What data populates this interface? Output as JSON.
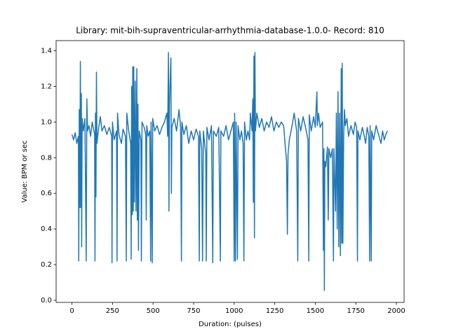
{
  "chart_data": {
    "type": "line",
    "title": "Library: mit-bih-supraventricular-arrhythmia-database-1.0.0- Record: 810",
    "x_label": "Duration: (pulses)",
    "y_label": "Value: BPM or sec",
    "color": "#1f77b4",
    "x": [
      0,
      10,
      20,
      30,
      40,
      42,
      45,
      48,
      52,
      55,
      58,
      60,
      63,
      70,
      80,
      88,
      92,
      96,
      105,
      115,
      125,
      140,
      142,
      145,
      148,
      151,
      154,
      165,
      175,
      185,
      200,
      215,
      230,
      245,
      247,
      250,
      260,
      275,
      278,
      281,
      290,
      305,
      315,
      330,
      335,
      338,
      350,
      362,
      365,
      368,
      372,
      375,
      378,
      381,
      385,
      390,
      395,
      400,
      403,
      407,
      410,
      415,
      425,
      428,
      432,
      445,
      455,
      458,
      461,
      470,
      480,
      485,
      488,
      495,
      498,
      510,
      525,
      540,
      555,
      570,
      585,
      590,
      595,
      598,
      601,
      610,
      613,
      616,
      630,
      645,
      660,
      670,
      675,
      678,
      690,
      705,
      720,
      735,
      750,
      765,
      780,
      785,
      788,
      800,
      805,
      810,
      825,
      828,
      832,
      845,
      860,
      868,
      872,
      890,
      905,
      915,
      918,
      935,
      950,
      965,
      980,
      995,
      1000,
      1003,
      1008,
      1012,
      1020,
      1024,
      1035,
      1045,
      1055,
      1060,
      1064,
      1075,
      1085,
      1095,
      1100,
      1110,
      1115,
      1118,
      1122,
      1125,
      1128,
      1131,
      1140,
      1155,
      1170,
      1185,
      1200,
      1215,
      1230,
      1245,
      1260,
      1275,
      1290,
      1305,
      1318,
      1323,
      1328,
      1332,
      1340,
      1355,
      1370,
      1385,
      1392,
      1396,
      1410,
      1425,
      1440,
      1455,
      1460,
      1463,
      1475,
      1490,
      1500,
      1510,
      1513,
      1520,
      1530,
      1545,
      1550,
      1553,
      1556,
      1559,
      1565,
      1575,
      1580,
      1584,
      1595,
      1605,
      1612,
      1615,
      1625,
      1630,
      1635,
      1640,
      1645,
      1650,
      1655,
      1660,
      1663,
      1666,
      1670,
      1675,
      1680,
      1685,
      1695,
      1705,
      1720,
      1735,
      1745,
      1755,
      1760,
      1763,
      1775,
      1790,
      1800,
      1810,
      1820,
      1830,
      1835,
      1838,
      1845,
      1848,
      1860,
      1875,
      1890,
      1905,
      1915,
      1925,
      1935,
      1945
    ],
    "values": [
      0.93,
      0.9,
      0.94,
      0.88,
      0.92,
      0.22,
      1.07,
      0.52,
      1.34,
      0.52,
      1.16,
      0.3,
      1.02,
      0.95,
      1.02,
      0.22,
      1.13,
      0.95,
      0.98,
      0.92,
      1.0,
      0.93,
      0.22,
      1.05,
      0.58,
      1.28,
      0.88,
      0.97,
      1.03,
      0.95,
      0.98,
      0.93,
      0.97,
      0.92,
      0.21,
      1.0,
      0.9,
      0.95,
      0.22,
      1.05,
      0.93,
      0.88,
      0.96,
      0.92,
      0.22,
      1.05,
      0.95,
      0.88,
      0.23,
      1.2,
      0.48,
      1.31,
      0.5,
      1.31,
      0.55,
      1.23,
      0.5,
      1.3,
      0.45,
      1.1,
      0.28,
      0.95,
      0.9,
      0.22,
      1.0,
      0.97,
      0.93,
      0.45,
      0.98,
      0.92,
      0.95,
      0.22,
      1.0,
      0.21,
      1.02,
      0.95,
      0.98,
      0.93,
      0.97,
      1.0,
      1.05,
      0.92,
      1.39,
      0.5,
      1.1,
      1.36,
      0.6,
      0.97,
      1.02,
      0.95,
      1.07,
      0.97,
      0.22,
      1.0,
      0.93,
      0.98,
      0.88,
      0.95,
      0.9,
      0.96,
      0.92,
      0.22,
      0.95,
      0.85,
      0.22,
      0.95,
      0.82,
      0.22,
      0.97,
      0.9,
      0.98,
      0.21,
      0.95,
      0.92,
      0.97,
      0.22,
      0.95,
      0.92,
      0.98,
      0.9,
      0.95,
      1.0,
      0.22,
      1.05,
      0.22,
      1.0,
      0.23,
      0.98,
      0.9,
      0.95,
      0.88,
      0.22,
      1.0,
      0.9,
      0.95,
      0.9,
      1.05,
      0.95,
      1.13,
      0.55,
      1.37,
      0.35,
      1.39,
      0.95,
      1.05,
      0.97,
      1.02,
      0.95,
      1.0,
      0.97,
      1.03,
      0.95,
      1.0,
      0.97,
      1.0,
      0.98,
      0.83,
      0.78,
      0.37,
      0.82,
      0.9,
      0.97,
      1.05,
      0.95,
      0.22,
      1.02,
      0.95,
      1.03,
      0.97,
      0.9,
      0.22,
      1.04,
      0.95,
      1.03,
      0.97,
      1.17,
      0.98,
      1.05,
      0.97,
      1.0,
      0.28,
      0.85,
      0.055,
      0.78,
      0.75,
      0.86,
      0.45,
      0.85,
      0.8,
      0.85,
      0.22,
      0.85,
      0.5,
      1.05,
      0.4,
      1.17,
      0.3,
      1.05,
      0.25,
      1.3,
      0.32,
      1.33,
      0.32,
      0.92,
      1.07,
      0.98,
      1.02,
      0.92,
      0.98,
      0.93,
      1.0,
      0.97,
      0.22,
      0.95,
      0.9,
      0.97,
      0.93,
      0.88,
      0.97,
      0.92,
      0.22,
      0.98,
      0.22,
      0.95,
      0.9,
      0.98,
      0.93,
      0.88,
      0.95,
      0.9,
      0.93,
      0.95
    ],
    "xlim": [
      -97.5,
      2047.5
    ],
    "ylim": [
      -0.012,
      1.457
    ],
    "xticks": [
      0,
      250,
      500,
      750,
      1000,
      1250,
      1500,
      1750,
      2000
    ],
    "yticks": [
      {
        "value": 0,
        "label": "0.0"
      },
      0.2,
      0.4,
      0.6,
      0.8,
      {
        "value": 1,
        "label": "1.0"
      },
      1.2,
      1.4
    ]
  }
}
